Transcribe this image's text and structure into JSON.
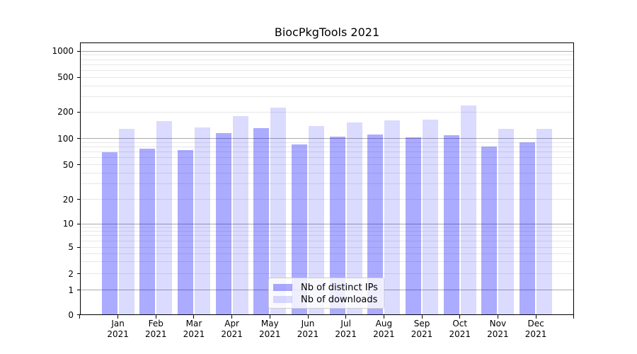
{
  "chart_data": {
    "type": "bar",
    "title": "BiocPkgTools 2021",
    "categories": [
      "Jan 2021",
      "Feb 2021",
      "Mar 2021",
      "Apr 2021",
      "May 2021",
      "Jun 2021",
      "Jul 2021",
      "Aug 2021",
      "Sep 2021",
      "Oct 2021",
      "Nov 2021",
      "Dec 2021"
    ],
    "x_ticks": [
      {
        "month": "Jan",
        "year": "2021"
      },
      {
        "month": "Feb",
        "year": "2021"
      },
      {
        "month": "Mar",
        "year": "2021"
      },
      {
        "month": "Apr",
        "year": "2021"
      },
      {
        "month": "May",
        "year": "2021"
      },
      {
        "month": "Jun",
        "year": "2021"
      },
      {
        "month": "Jul",
        "year": "2021"
      },
      {
        "month": "Aug",
        "year": "2021"
      },
      {
        "month": "Sep",
        "year": "2021"
      },
      {
        "month": "Oct",
        "year": "2021"
      },
      {
        "month": "Nov",
        "year": "2021"
      },
      {
        "month": "Dec",
        "year": "2021"
      }
    ],
    "series": [
      {
        "name": "Nb of distinct IPs",
        "color": "rgba(0,0,255,0.33)",
        "color_hex": "#abadf5",
        "values": [
          70,
          77,
          74,
          115,
          132,
          86,
          105,
          111,
          103,
          109,
          81,
          90
        ]
      },
      {
        "name": "Nb of downloads",
        "color": "rgba(0,0,255,0.14)",
        "color_hex": "#dcdcfa",
        "values": [
          128,
          157,
          134,
          180,
          226,
          139,
          151,
          162,
          164,
          237,
          130,
          129
        ]
      }
    ],
    "yscale": "symlog",
    "y_ticks": [
      0,
      1,
      2,
      5,
      10,
      20,
      50,
      100,
      200,
      500,
      1000
    ],
    "y_major_grid_ticks": [
      1,
      10,
      100,
      1000
    ],
    "y_minor_grid_ticks": [
      3,
      4,
      6,
      7,
      8,
      9,
      30,
      40,
      60,
      70,
      80,
      90,
      300,
      400,
      600,
      700,
      800,
      900
    ],
    "ylim": [
      0,
      1300
    ],
    "xlabel": "",
    "ylabel": "",
    "grid": "horizontal",
    "legend_position": "lower center"
  },
  "legend": {
    "items": [
      {
        "label": "Nb of distinct IPs"
      },
      {
        "label": "Nb of downloads"
      }
    ]
  },
  "colors": {
    "background": "#ffffff",
    "spine": "#000000",
    "major_grid": "#ababab",
    "minor_grid": "#e7e7e7",
    "text": "#000000"
  }
}
